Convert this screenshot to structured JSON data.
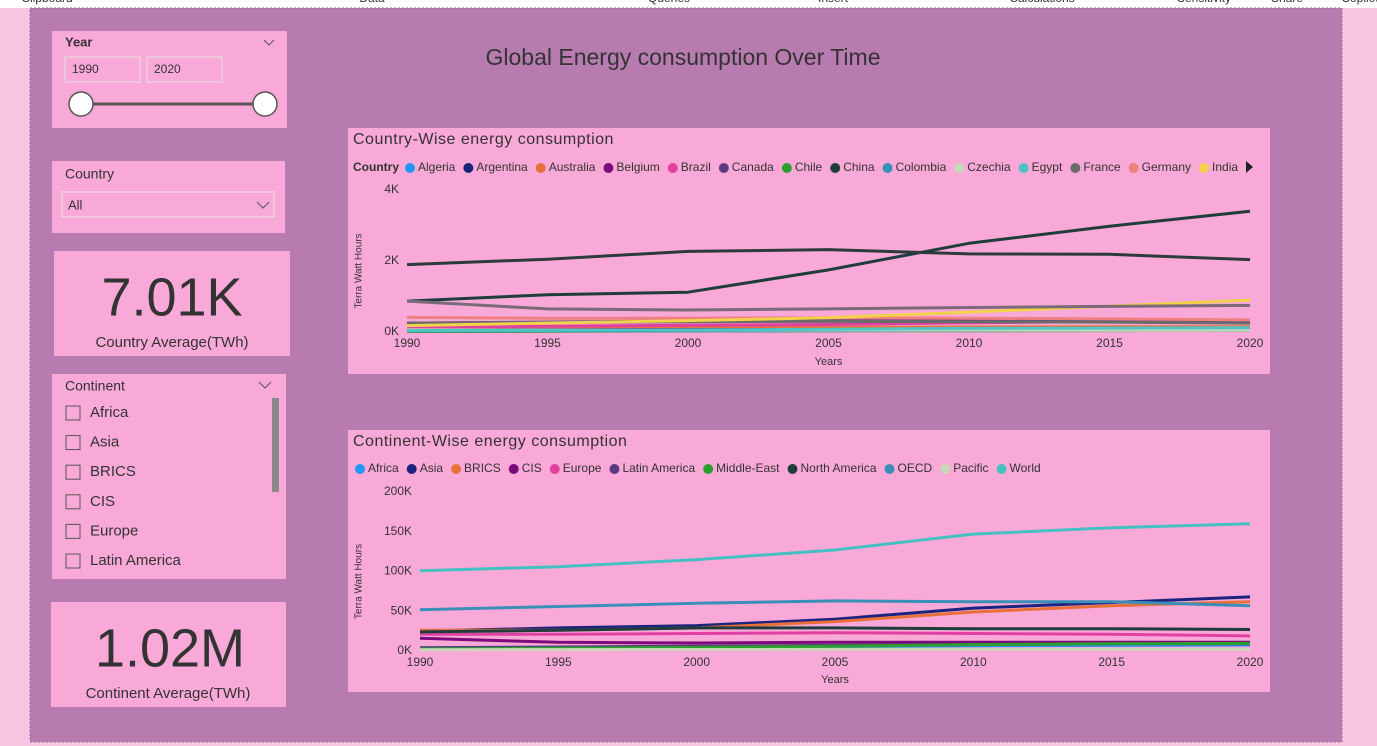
{
  "ribbon": [
    "Clipboard",
    "Data",
    "Queries",
    "Insert",
    "Calculations",
    "Sensitivity",
    "Share",
    "Copilot"
  ],
  "title": "Global Energy consumption Over Time",
  "slicers": {
    "year": {
      "label": "Year",
      "start": "1990",
      "end": "2020"
    },
    "country": {
      "label": "Country",
      "value": "All"
    },
    "continent": {
      "label": "Continent",
      "items": [
        "Africa",
        "Asia",
        "BRICS",
        "CIS",
        "Europe",
        "Latin America"
      ]
    }
  },
  "cards": [
    {
      "value": "7.01K",
      "label": "Country Average(TWh)"
    },
    {
      "value": "1.02M",
      "label": "Continent Average(TWh)"
    }
  ],
  "chart_data": [
    {
      "type": "line",
      "title": "Country-Wise energy consumption",
      "legend_title": "Country",
      "y_label": "Terra Watt Hours",
      "x_label": "Years",
      "x": [
        1990,
        1995,
        2000,
        2005,
        2010,
        2015,
        2020
      ],
      "xlim": [
        1990,
        2020
      ],
      "xticks": [
        1990,
        1995,
        2000,
        2005,
        2010,
        2015,
        2020
      ],
      "ylim": [
        0,
        4000
      ],
      "yticks": [
        {
          "value": 0,
          "label": "0K"
        },
        {
          "value": 2000,
          "label": "2K"
        },
        {
          "value": 4000,
          "label": "4K"
        }
      ],
      "series": [
        {
          "name": "Algeria",
          "color": "#2196f3",
          "values": [
            25,
            30,
            35,
            40,
            45,
            55,
            60
          ]
        },
        {
          "name": "Argentina",
          "color": "#1a237e",
          "values": [
            50,
            60,
            70,
            75,
            85,
            90,
            85
          ]
        },
        {
          "name": "Australia",
          "color": "#e8703a",
          "values": [
            100,
            110,
            120,
            130,
            140,
            150,
            150
          ]
        },
        {
          "name": "Belgium",
          "color": "#7b0a7b",
          "values": [
            60,
            65,
            70,
            70,
            65,
            63,
            60
          ]
        },
        {
          "name": "Brazil",
          "color": "#e040a0",
          "values": [
            140,
            160,
            190,
            210,
            260,
            300,
            290
          ]
        },
        {
          "name": "Canada",
          "color": "#5a3a80",
          "values": [
            250,
            280,
            310,
            320,
            320,
            330,
            320
          ]
        },
        {
          "name": "Chile",
          "color": "#2ca02c",
          "values": [
            15,
            20,
            30,
            35,
            35,
            40,
            45
          ]
        },
        {
          "name": "China",
          "color": "#1f3d3d",
          "values": [
            870,
            1050,
            1120,
            1750,
            2500,
            2980,
            3400
          ]
        },
        {
          "name": "Colombia",
          "color": "#3a8fb7",
          "values": [
            30,
            35,
            35,
            40,
            45,
            50,
            50
          ]
        },
        {
          "name": "Czechia",
          "color": "#c8d8b8",
          "values": [
            60,
            55,
            55,
            55,
            55,
            50,
            50
          ]
        },
        {
          "name": "Egypt",
          "color": "#4fc4c4",
          "values": [
            40,
            50,
            60,
            75,
            100,
            110,
            120
          ]
        },
        {
          "name": "France",
          "color": "#6b6b6b",
          "values": [
            250,
            270,
            290,
            300,
            290,
            280,
            250
          ]
        },
        {
          "name": "Germany",
          "color": "#f08080",
          "values": [
            410,
            390,
            390,
            400,
            390,
            370,
            340
          ]
        },
        {
          "name": "India",
          "color": "#f2d14b",
          "values": [
            180,
            250,
            320,
            400,
            560,
            730,
            900
          ]
        },
        {
          "color": "#2b3a3a",
          "values": [
            1900,
            2050,
            2270,
            2320,
            2200,
            2190,
            2040
          ]
        },
        {
          "color": "#7a6a7a",
          "values": [
            870,
            650,
            620,
            650,
            690,
            720,
            750
          ]
        }
      ]
    },
    {
      "type": "line",
      "title": "Continent-Wise energy consumption",
      "y_label": "Terra Watt Hours",
      "x_label": "Years",
      "x": [
        1990,
        1995,
        2000,
        2005,
        2010,
        2015,
        2020
      ],
      "xlim": [
        1990,
        2020
      ],
      "xticks": [
        1990,
        1995,
        2000,
        2005,
        2010,
        2015,
        2020
      ],
      "ylim": [
        0,
        200000
      ],
      "yticks": [
        {
          "value": 0,
          "label": "0K"
        },
        {
          "value": 50000,
          "label": "50K"
        },
        {
          "value": 100000,
          "label": "100K"
        },
        {
          "value": 150000,
          "label": "150K"
        },
        {
          "value": 200000,
          "label": "200K"
        }
      ],
      "series": [
        {
          "name": "Africa",
          "color": "#2196f3",
          "values": [
            4000,
            4500,
            5000,
            5500,
            6500,
            7000,
            7500
          ]
        },
        {
          "name": "Asia",
          "color": "#1a237e",
          "values": [
            25000,
            29000,
            32000,
            40000,
            54000,
            61000,
            68000
          ]
        },
        {
          "name": "BRICS",
          "color": "#e8703a",
          "values": [
            26000,
            26000,
            29000,
            37000,
            49000,
            57000,
            62000
          ]
        },
        {
          "name": "CIS",
          "color": "#7b0a7b",
          "values": [
            16000,
            11000,
            10000,
            11000,
            11000,
            11000,
            11000
          ]
        },
        {
          "name": "Europe",
          "color": "#e040a0",
          "values": [
            21000,
            21000,
            22000,
            23000,
            22000,
            21000,
            19000
          ]
        },
        {
          "name": "Latin America",
          "color": "#5a3a80",
          "values": [
            4000,
            5000,
            6000,
            7000,
            8000,
            9000,
            9000
          ]
        },
        {
          "name": "Middle-East",
          "color": "#2ca02c",
          "values": [
            2500,
            3500,
            4500,
            6000,
            8000,
            9000,
            9500
          ]
        },
        {
          "name": "North America",
          "color": "#1f3d3d",
          "values": [
            24000,
            26000,
            29000,
            29000,
            28000,
            28000,
            27000
          ]
        },
        {
          "name": "OECD",
          "color": "#3a8fb7",
          "values": [
            52000,
            56000,
            60000,
            63000,
            62000,
            62000,
            57000
          ]
        },
        {
          "name": "Pacific",
          "color": "#c8d8b8",
          "values": [
            1500,
            1700,
            1900,
            2000,
            2000,
            2000,
            2000
          ]
        },
        {
          "name": "World",
          "color": "#45c0c0",
          "values": [
            101000,
            106000,
            115000,
            127000,
            147000,
            155000,
            160000
          ]
        }
      ]
    }
  ]
}
